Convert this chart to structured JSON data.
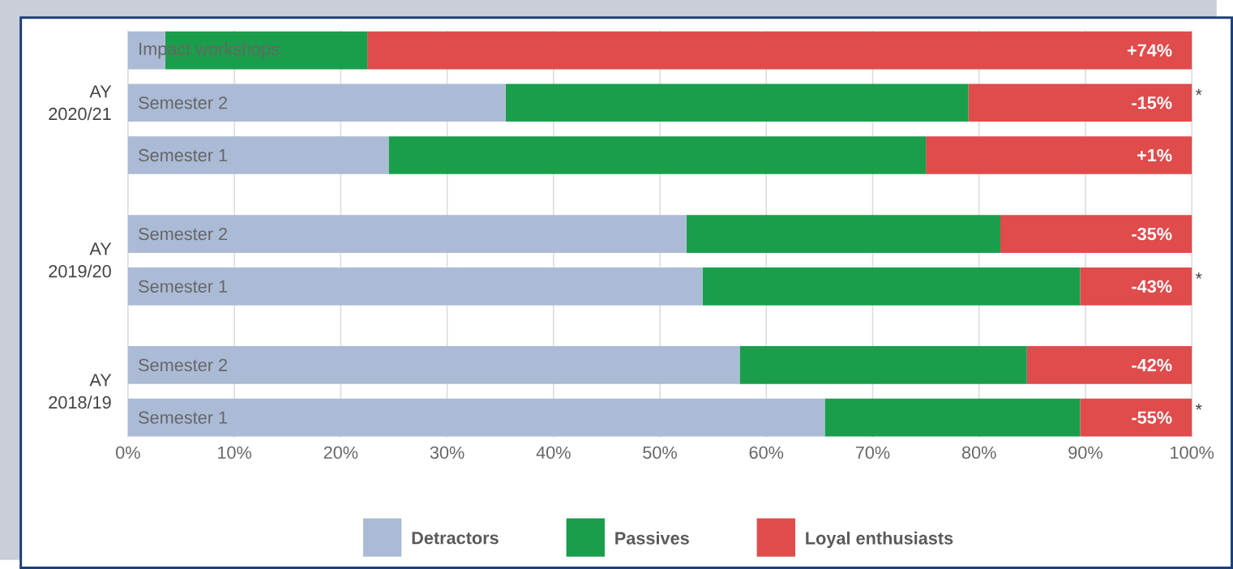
{
  "chart_data": {
    "type": "bar",
    "orientation": "horizontal",
    "stacked": true,
    "categories": [
      "Impact workshops",
      "Semester 2",
      "Semester 1",
      "Semester 2",
      "Semester 1",
      "Semester 2",
      "Semester 1"
    ],
    "series": [
      {
        "name": "Detractors",
        "color": "#abbbd6",
        "values": [
          3.5,
          35.5,
          24.5,
          52.5,
          54,
          57.5,
          65.5
        ]
      },
      {
        "name": "Passives",
        "color": "#1a9e4b",
        "values": [
          19,
          43.5,
          50.5,
          29.5,
          35.5,
          27,
          24
        ]
      },
      {
        "name": "Loyal enthusiasts",
        "color": "#e04b4b",
        "values": [
          77.5,
          21,
          25,
          18,
          10.5,
          15.5,
          10.5
        ]
      }
    ],
    "xlim": [
      0,
      100
    ],
    "xticks": [
      {
        "value": 0,
        "label": "0%"
      },
      {
        "value": 10,
        "label": "10%"
      },
      {
        "value": 20,
        "label": "20%"
      },
      {
        "value": 30,
        "label": "30%"
      },
      {
        "value": 40,
        "label": "40%"
      },
      {
        "value": 50,
        "label": "50%"
      },
      {
        "value": 60,
        "label": "60%"
      },
      {
        "value": 70,
        "label": "70%"
      },
      {
        "value": 80,
        "label": "80%"
      },
      {
        "value": 90,
        "label": "90%"
      },
      {
        "value": 100,
        "label": "100%"
      }
    ],
    "grid": "x",
    "legend": "bottom",
    "annotations": [
      "AY 2020/21",
      "AY 2019/20",
      "AY 2018/19",
      "+74%",
      "-15%",
      "+1%",
      "-35%",
      "-43%",
      "-42%",
      "-55%",
      "*",
      "*",
      "*"
    ]
  }
}
